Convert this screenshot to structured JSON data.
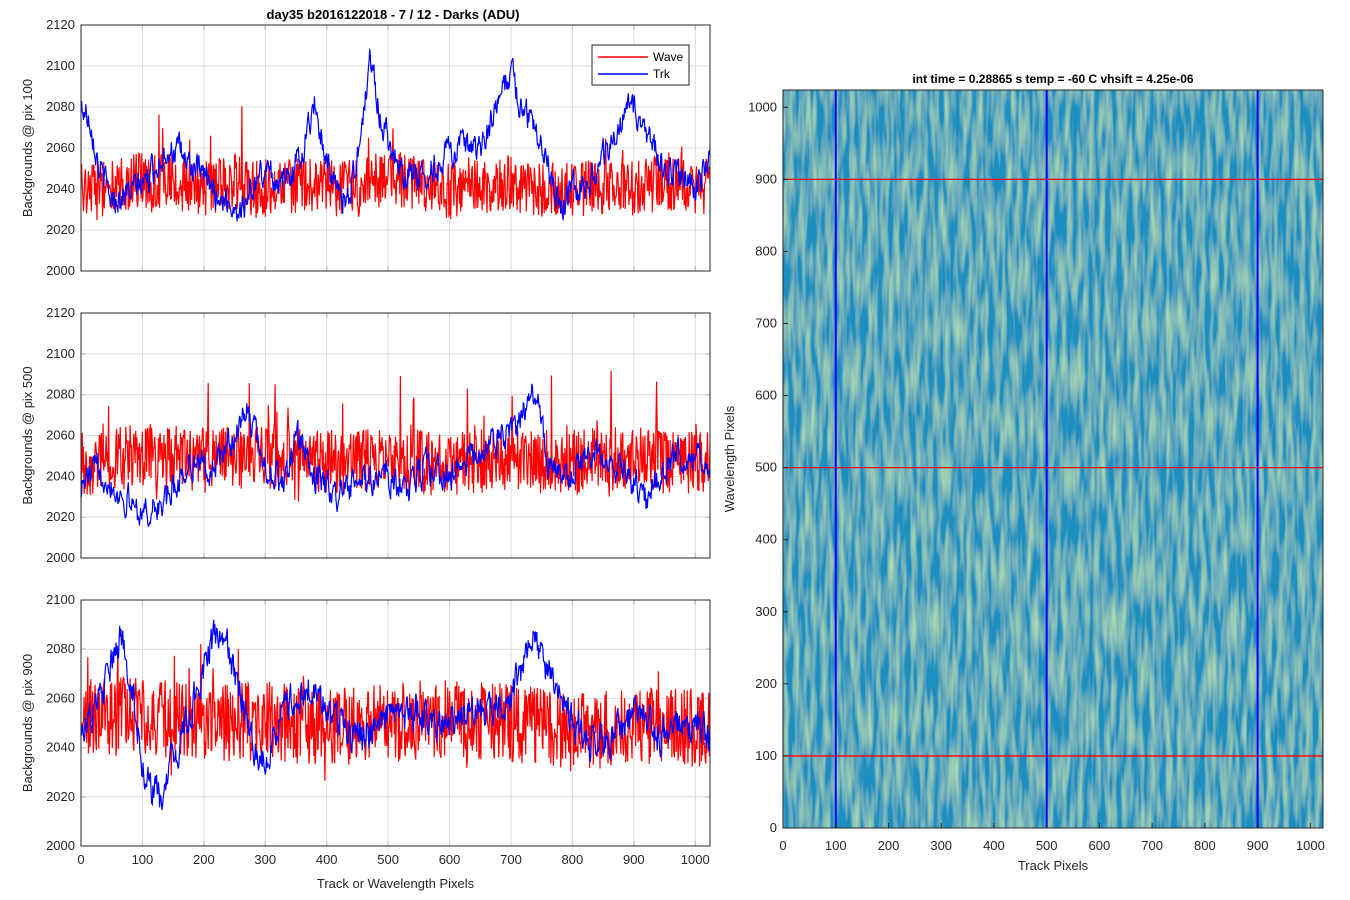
{
  "figure": {
    "title": "day35 b2016122018 - 7 / 12 - Darks (ADU)"
  },
  "chart_data": [
    {
      "type": "line",
      "panel": "top",
      "title": "day35 b2016122018 - 7 / 12 - Darks (ADU)",
      "xlabel": "",
      "ylabel": "Backgrounds @ pix 100",
      "xlim": [
        0,
        1024
      ],
      "ylim": [
        2000,
        2120
      ],
      "xticks": [
        0,
        100,
        200,
        300,
        400,
        500,
        600,
        700,
        800,
        900,
        1000
      ],
      "yticks": [
        2000,
        2020,
        2040,
        2060,
        2080,
        2100,
        2120
      ],
      "show_xtick_labels": false,
      "grid": true,
      "legend": {
        "placement": "top-right",
        "entries": [
          "Wave",
          "Trk"
        ]
      },
      "series": [
        {
          "name": "Wave",
          "color": "#ff0000",
          "x": [
            0,
            50,
            100,
            150,
            200,
            250,
            300,
            350,
            400,
            450,
            500,
            550,
            600,
            650,
            700,
            750,
            800,
            850,
            900,
            950,
            1000,
            1024
          ],
          "values": [
            2042,
            2040,
            2045,
            2043,
            2040,
            2044,
            2038,
            2042,
            2041,
            2040,
            2046,
            2042,
            2039,
            2041,
            2043,
            2040,
            2039,
            2041,
            2040,
            2044,
            2040,
            2041
          ],
          "spread": 14
        },
        {
          "name": "Trk",
          "color": "#0000ff",
          "x": [
            0,
            15,
            30,
            50,
            75,
            100,
            125,
            140,
            160,
            200,
            230,
            260,
            300,
            330,
            360,
            380,
            400,
            420,
            440,
            460,
            470,
            490,
            520,
            560,
            600,
            650,
            680,
            700,
            720,
            750,
            780,
            800,
            830,
            860,
            890,
            900,
            950,
            1000,
            1024
          ],
          "values": [
            2080,
            2075,
            2050,
            2035,
            2038,
            2042,
            2052,
            2060,
            2058,
            2045,
            2035,
            2030,
            2050,
            2042,
            2058,
            2082,
            2055,
            2035,
            2040,
            2075,
            2104,
            2072,
            2050,
            2045,
            2060,
            2058,
            2082,
            2098,
            2078,
            2065,
            2032,
            2040,
            2045,
            2060,
            2080,
            2078,
            2050,
            2040,
            2055
          ],
          "spread": 6
        }
      ]
    },
    {
      "type": "line",
      "panel": "middle",
      "xlabel": "",
      "ylabel": "Backgrounds @ pix 500",
      "xlim": [
        0,
        1024
      ],
      "ylim": [
        2000,
        2120
      ],
      "xticks": [
        0,
        100,
        200,
        300,
        400,
        500,
        600,
        700,
        800,
        900,
        1000
      ],
      "yticks": [
        2000,
        2020,
        2040,
        2060,
        2080,
        2100,
        2120
      ],
      "show_xtick_labels": false,
      "grid": true,
      "series": [
        {
          "name": "Wave",
          "color": "#ff0000",
          "x": [
            0,
            100,
            200,
            300,
            400,
            500,
            600,
            700,
            800,
            900,
            1000,
            1024
          ],
          "values": [
            2046,
            2050,
            2048,
            2050,
            2047,
            2048,
            2046,
            2048,
            2047,
            2049,
            2046,
            2048
          ],
          "spread": 16
        },
        {
          "name": "Trk",
          "color": "#0000ff",
          "x": [
            0,
            30,
            60,
            90,
            110,
            140,
            180,
            210,
            240,
            270,
            300,
            330,
            350,
            380,
            420,
            460,
            500,
            530,
            560,
            600,
            640,
            680,
            710,
            740,
            760,
            800,
            840,
            880,
            920,
            960,
            1000,
            1024
          ],
          "values": [
            2035,
            2045,
            2032,
            2025,
            2022,
            2028,
            2048,
            2042,
            2055,
            2072,
            2045,
            2035,
            2060,
            2040,
            2030,
            2038,
            2040,
            2032,
            2045,
            2040,
            2050,
            2058,
            2065,
            2082,
            2045,
            2040,
            2055,
            2042,
            2030,
            2048,
            2052,
            2045
          ],
          "spread": 6
        }
      ]
    },
    {
      "type": "line",
      "panel": "bottom",
      "xlabel": "Track or Wavelength Pixels",
      "ylabel": "Backgrounds @ pix 900",
      "xlim": [
        0,
        1024
      ],
      "ylim": [
        2000,
        2100
      ],
      "xticks": [
        0,
        100,
        200,
        300,
        400,
        500,
        600,
        700,
        800,
        900,
        1000
      ],
      "yticks": [
        2000,
        2020,
        2040,
        2060,
        2080,
        2100
      ],
      "show_xtick_labels": true,
      "grid": true,
      "series": [
        {
          "name": "Wave",
          "color": "#ff0000",
          "x": [
            0,
            100,
            200,
            300,
            400,
            500,
            600,
            700,
            800,
            900,
            1000,
            1024
          ],
          "values": [
            2052,
            2053,
            2050,
            2051,
            2048,
            2050,
            2052,
            2050,
            2046,
            2049,
            2048,
            2047
          ],
          "spread": 16
        },
        {
          "name": "Trk",
          "color": "#0000ff",
          "x": [
            0,
            20,
            40,
            65,
            80,
            100,
            110,
            130,
            150,
            180,
            210,
            230,
            260,
            280,
            300,
            330,
            370,
            400,
            450,
            500,
            540,
            580,
            620,
            660,
            700,
            740,
            760,
            800,
            850,
            900,
            940,
            980,
            1024
          ],
          "values": [
            2050,
            2052,
            2065,
            2085,
            2070,
            2035,
            2025,
            2018,
            2035,
            2055,
            2082,
            2085,
            2062,
            2040,
            2035,
            2055,
            2065,
            2055,
            2045,
            2050,
            2055,
            2050,
            2052,
            2055,
            2062,
            2085,
            2072,
            2050,
            2040,
            2055,
            2045,
            2052,
            2045
          ],
          "spread": 6
        }
      ]
    },
    {
      "type": "heatmap",
      "panel": "right",
      "title": "int time = 0.28865 s    temp = -60 C    vhsift = 4.25e-06",
      "xlabel": "Track Pixels",
      "ylabel": "Wavelength Pixels",
      "xlim": [
        0,
        1024
      ],
      "ylim": [
        0,
        1024
      ],
      "xticks": [
        0,
        100,
        200,
        300,
        400,
        500,
        600,
        700,
        800,
        900,
        1000
      ],
      "yticks": [
        0,
        100,
        200,
        300,
        400,
        500,
        600,
        700,
        800,
        900,
        1000
      ],
      "colormap": [
        "#1f78c8",
        "#1a9bb0",
        "#2eb59b",
        "#7cc46c"
      ],
      "vertical_markers": {
        "color": "#0000ff",
        "x": [
          100,
          500,
          900
        ]
      },
      "horizontal_markers": {
        "color": "#ff0000",
        "y": [
          100,
          500,
          900
        ]
      }
    }
  ]
}
